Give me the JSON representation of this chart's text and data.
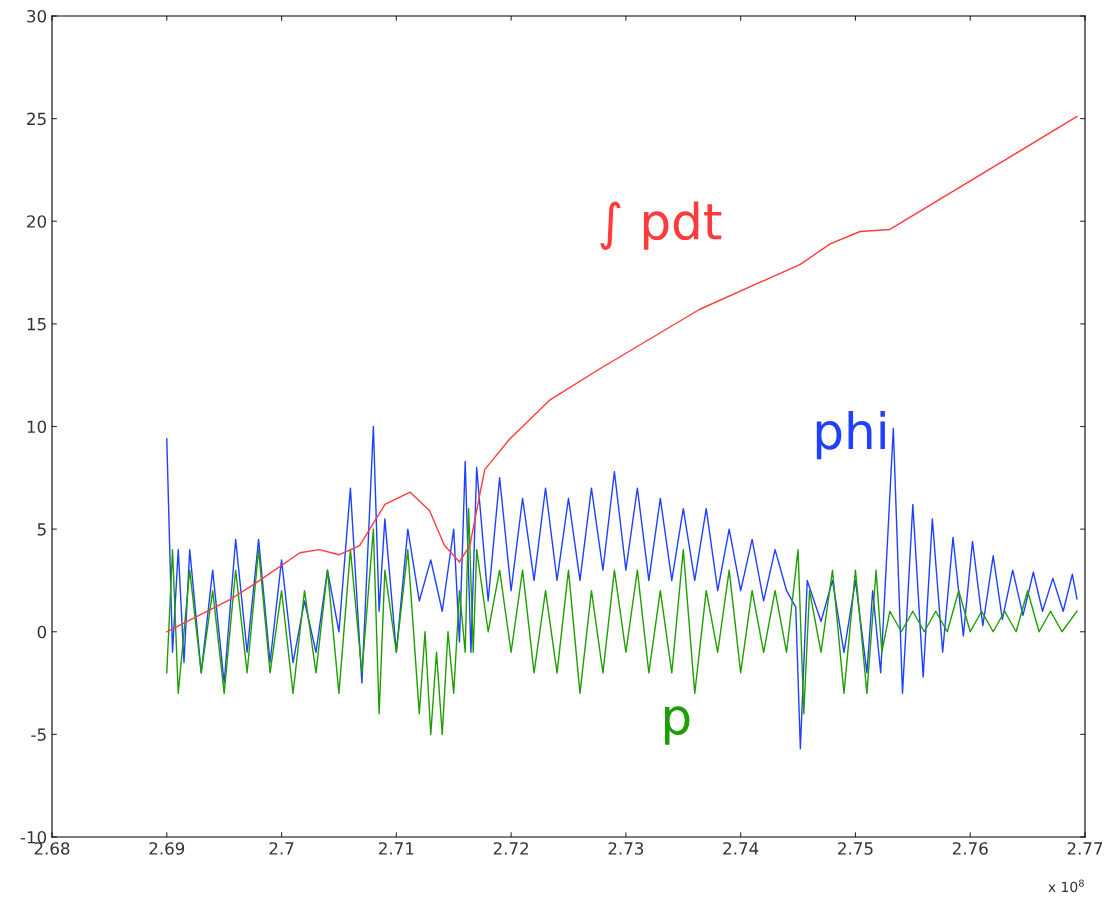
{
  "chart_data": {
    "type": "line",
    "xlim": [
      2.68,
      2.77
    ],
    "xticks": [
      2.68,
      2.69,
      2.7,
      2.71,
      2.72,
      2.73,
      2.74,
      2.75,
      2.76,
      2.77
    ],
    "ylim": [
      -10,
      30
    ],
    "yticks": [
      -10,
      -5,
      0,
      5,
      10,
      15,
      20,
      25,
      30
    ],
    "grid": false,
    "annotations": [
      "x 10$^{8}$"
    ],
    "series": [
      {
        "name": "∫ pdt",
        "color": "#ff3b3b",
        "x": [
          2.69,
          2.6955,
          2.6981,
          2.7016,
          2.7033,
          2.705,
          2.7068,
          2.709,
          2.7112,
          2.7129,
          2.7142,
          2.7155,
          2.7164,
          2.7177,
          2.7199,
          2.7234,
          2.7277,
          2.7364,
          2.7452,
          2.7478,
          2.7504,
          2.753,
          2.7693
        ],
        "values": [
          0,
          1.56,
          2.5,
          3.85,
          4.0,
          3.75,
          4.2,
          6.2,
          6.8,
          5.9,
          4.2,
          3.4,
          4.2,
          7.9,
          9.4,
          11.3,
          12.8,
          15.7,
          17.9,
          18.9,
          19.5,
          19.6,
          25.1
        ]
      },
      {
        "name": "p",
        "color": "#1f9e00",
        "x": [
          2.69,
          2.6905,
          2.691,
          2.692,
          2.693,
          2.694,
          2.695,
          2.696,
          2.697,
          2.698,
          2.699,
          2.7,
          2.701,
          2.702,
          2.703,
          2.704,
          2.705,
          2.706,
          2.707,
          2.708,
          2.7085,
          2.709,
          2.71,
          2.711,
          2.712,
          2.7125,
          2.713,
          2.7135,
          2.714,
          2.7145,
          2.715,
          2.7155,
          2.716,
          2.7163,
          2.7167,
          2.717,
          2.718,
          2.719,
          2.72,
          2.721,
          2.722,
          2.723,
          2.724,
          2.725,
          2.726,
          2.727,
          2.728,
          2.729,
          2.73,
          2.731,
          2.732,
          2.733,
          2.734,
          2.735,
          2.736,
          2.737,
          2.738,
          2.739,
          2.74,
          2.741,
          2.742,
          2.743,
          2.744,
          2.745,
          2.7455,
          2.746,
          2.747,
          2.748,
          2.749,
          2.75,
          2.751,
          2.7518,
          2.7523,
          2.753,
          2.754,
          2.755,
          2.756,
          2.757,
          2.758,
          2.759,
          2.76,
          2.761,
          2.762,
          2.763,
          2.764,
          2.765,
          2.766,
          2.767,
          2.768,
          2.7693
        ],
        "values": [
          -2,
          4,
          -3,
          3,
          -2,
          2,
          -3,
          3,
          -2,
          4,
          -2,
          2,
          -3,
          2,
          -2,
          3,
          -3,
          4,
          -2,
          5,
          -4,
          3,
          -1,
          4,
          -4,
          0,
          -5,
          -1,
          -5,
          0,
          -3,
          2,
          -1,
          6,
          -1,
          4,
          0,
          3,
          -1,
          3,
          -2,
          2,
          -2,
          3,
          -3,
          2,
          -2,
          3,
          -1,
          3,
          -2,
          2,
          -2,
          4,
          -3,
          2,
          -1,
          3,
          -2,
          2,
          -1,
          2,
          -1,
          4,
          -4,
          2,
          -1,
          3,
          -3,
          3,
          -3,
          3,
          -1,
          1,
          0,
          1,
          0,
          1,
          0,
          2,
          0,
          1,
          0,
          1,
          0,
          2,
          0,
          1,
          0,
          1
        ]
      },
      {
        "name": "phi",
        "color": "#2040ff",
        "x": [
          2.69,
          2.6905,
          2.691,
          2.6915,
          2.692,
          2.693,
          2.694,
          2.695,
          2.696,
          2.697,
          2.698,
          2.699,
          2.7,
          2.701,
          2.702,
          2.703,
          2.704,
          2.705,
          2.706,
          2.707,
          2.708,
          2.7085,
          2.709,
          2.71,
          2.711,
          2.712,
          2.713,
          2.714,
          2.715,
          2.7155,
          2.716,
          2.7165,
          2.717,
          2.718,
          2.719,
          2.72,
          2.721,
          2.722,
          2.723,
          2.724,
          2.725,
          2.726,
          2.727,
          2.728,
          2.729,
          2.73,
          2.731,
          2.732,
          2.733,
          2.734,
          2.735,
          2.736,
          2.737,
          2.738,
          2.739,
          2.74,
          2.741,
          2.742,
          2.743,
          2.744,
          2.7448,
          2.7452,
          2.7458,
          2.747,
          2.748,
          2.749,
          2.75,
          2.751,
          2.7515,
          2.7522,
          2.7533,
          2.7541,
          2.755,
          2.7559,
          2.7567,
          2.7576,
          2.7585,
          2.7594,
          2.7602,
          2.7611,
          2.762,
          2.7628,
          2.7637,
          2.7646,
          2.7655,
          2.7663,
          2.7672,
          2.7681,
          2.7689,
          2.7693
        ],
        "values": [
          9.4,
          -1,
          4,
          -1.5,
          4,
          -2,
          3,
          -2.5,
          4.5,
          -1,
          4.5,
          -1.5,
          3.5,
          -1.5,
          1.5,
          -1,
          3,
          0,
          7,
          -2.5,
          10,
          1,
          5.5,
          -1,
          5,
          1.5,
          3.5,
          1,
          5,
          -0.5,
          8.3,
          -1,
          8,
          1.5,
          7.5,
          2,
          6.5,
          2.5,
          7,
          2.5,
          6.5,
          2.5,
          7,
          3,
          7.8,
          3,
          7,
          2.5,
          6.5,
          2.5,
          6,
          2.5,
          6,
          2,
          5,
          2,
          4.5,
          1.5,
          4,
          2,
          1.2,
          -5.7,
          2.5,
          0.5,
          2.5,
          -1,
          2.5,
          -2,
          2,
          -2,
          9.9,
          -3,
          6.2,
          -2.2,
          5.5,
          -1,
          4.6,
          -0.2,
          4.4,
          0.3,
          3.7,
          0.6,
          3.0,
          0.8,
          2.9,
          1.0,
          2.6,
          1.0,
          2.8,
          1.6
        ]
      }
    ]
  }
}
